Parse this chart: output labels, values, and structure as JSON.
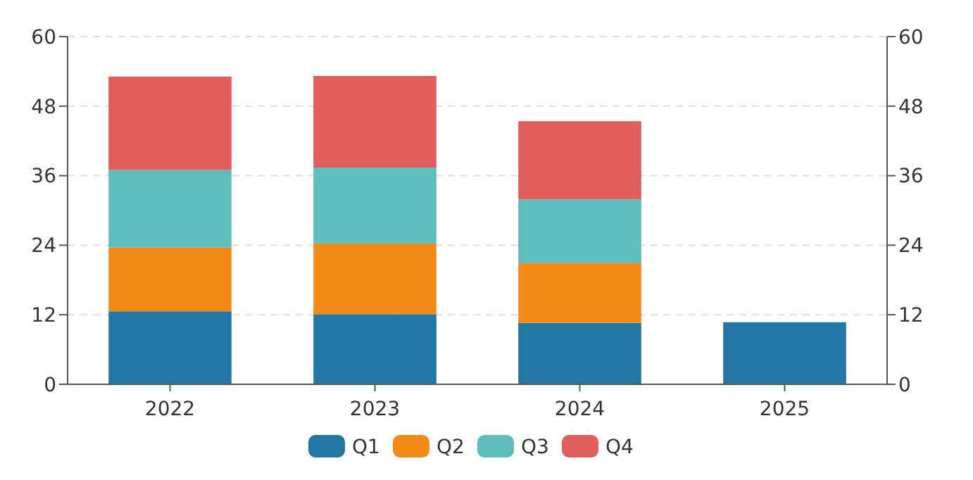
{
  "chart_data": {
    "type": "bar",
    "stacked": true,
    "categories": [
      "2022",
      "2023",
      "2024",
      "2025"
    ],
    "series": [
      {
        "name": "Q1",
        "color": "#2277a4",
        "values": [
          12.6,
          12.1,
          10.6,
          10.7
        ]
      },
      {
        "name": "Q2",
        "color": "#f38b1a",
        "values": [
          11.0,
          12.2,
          10.3,
          null
        ]
      },
      {
        "name": "Q3",
        "color": "#5fbdbd",
        "values": [
          13.4,
          13.1,
          11.0,
          null
        ]
      },
      {
        "name": "Q4",
        "color": "#e05d5e",
        "values": [
          16.1,
          15.8,
          13.5,
          null
        ]
      }
    ],
    "ylim": [
      0,
      60
    ],
    "yticks": [
      0,
      12,
      24,
      36,
      48,
      60
    ],
    "y2lim": [
      0,
      60
    ],
    "y2ticks": [
      0,
      12,
      24,
      36,
      48,
      60
    ],
    "grid": "y",
    "legend": "bottom"
  }
}
